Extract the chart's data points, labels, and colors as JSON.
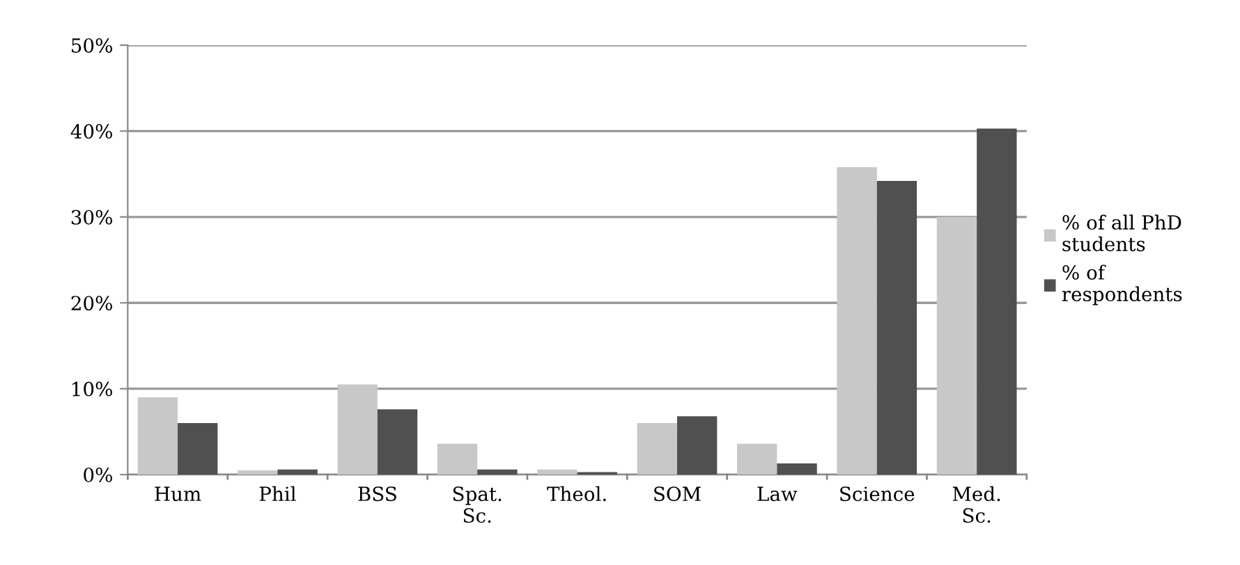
{
  "chart_data": {
    "type": "bar",
    "categories": [
      "Hum",
      "Phil",
      "BSS",
      "Spat.\nSc.",
      "Theol.",
      "SOM",
      "Law",
      "Science",
      "Med.\nSc."
    ],
    "series": [
      {
        "name": "% of all PhD\nstudents",
        "color": "#c8c8c8",
        "values": [
          9.0,
          0.5,
          10.5,
          3.6,
          0.6,
          6.0,
          3.6,
          35.8,
          30.0
        ]
      },
      {
        "name": "% of\nrespondents",
        "color": "#505050",
        "values": [
          6.0,
          0.6,
          7.6,
          0.6,
          0.3,
          6.8,
          1.3,
          34.2,
          40.3
        ]
      }
    ],
    "ylim": [
      0,
      50
    ],
    "yticks": [
      {
        "value": 0,
        "label": "0%"
      },
      {
        "value": 10,
        "label": "10%"
      },
      {
        "value": 20,
        "label": "20%"
      },
      {
        "value": 30,
        "label": "30%"
      },
      {
        "value": 40,
        "label": "40%"
      },
      {
        "value": 50,
        "label": "50%"
      }
    ],
    "grid": "y",
    "legend": "right"
  }
}
